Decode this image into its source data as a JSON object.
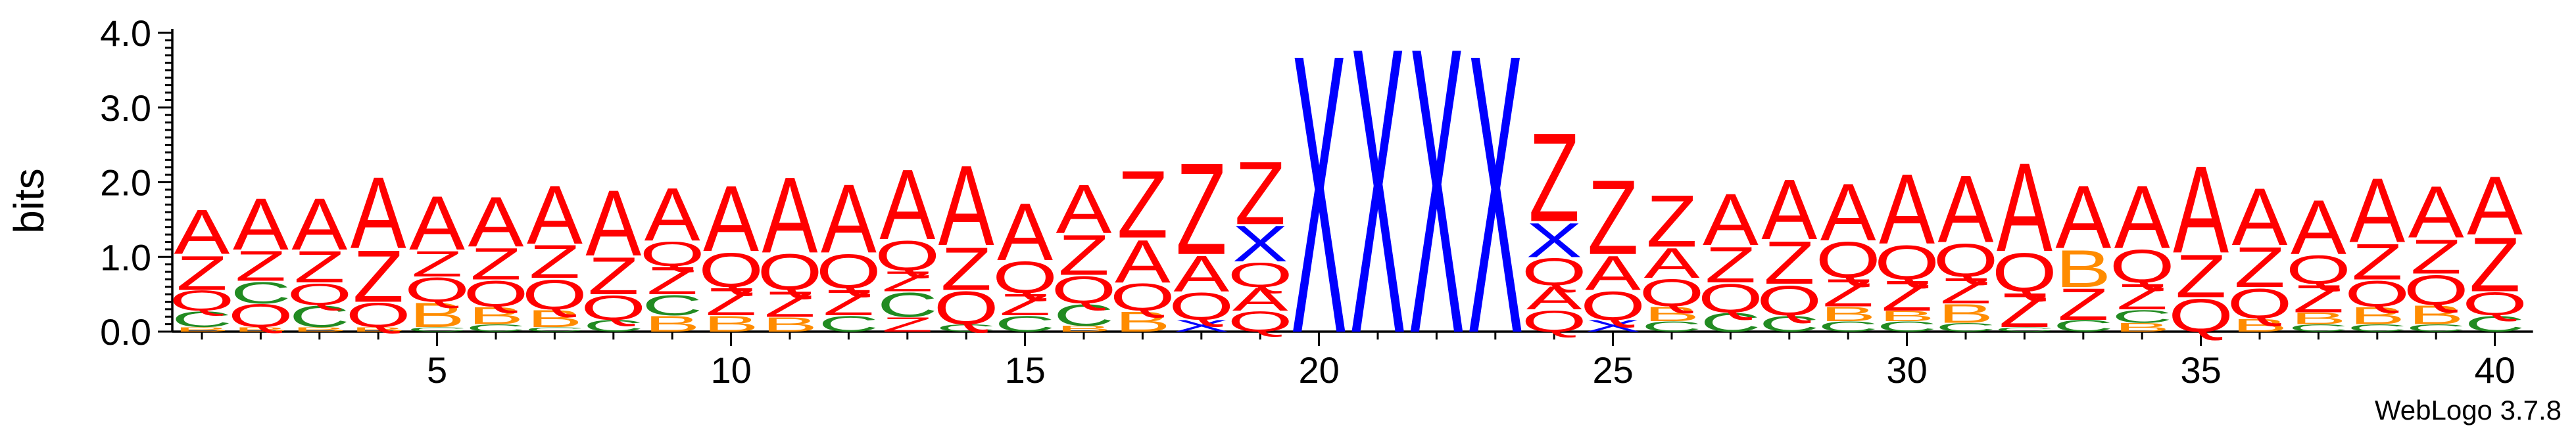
{
  "footer": {
    "credit": "WebLogo 3.7.8"
  },
  "colors": {
    "A": "#ff0000",
    "Z": "#ff0000",
    "Q": "#ff0000",
    "C": "#228b22",
    "B": "#ff8c00",
    "X": "#0000ff"
  },
  "chart_data": {
    "type": "sequence-logo",
    "ylabel": "bits",
    "ylim": [
      0,
      4.0
    ],
    "y_ticks": [
      "0.0",
      "1.0",
      "2.0",
      "3.0",
      "4.0"
    ],
    "x_ticks": [
      "5",
      "10",
      "15",
      "20",
      "25",
      "30",
      "35",
      "40"
    ],
    "positions": [
      {
        "pos": 1,
        "stack": [
          {
            "l": "B",
            "h": 0.06
          },
          {
            "l": "C",
            "h": 0.22
          },
          {
            "l": "Q",
            "h": 0.28
          },
          {
            "l": "Z",
            "h": 0.48
          },
          {
            "l": "A",
            "h": 0.62
          }
        ]
      },
      {
        "pos": 2,
        "stack": [
          {
            "l": "B",
            "h": 0.06
          },
          {
            "l": "Q",
            "h": 0.32
          },
          {
            "l": "C",
            "h": 0.3
          },
          {
            "l": "Z",
            "h": 0.42
          },
          {
            "l": "A",
            "h": 0.72
          }
        ]
      },
      {
        "pos": 3,
        "stack": [
          {
            "l": "B",
            "h": 0.06
          },
          {
            "l": "C",
            "h": 0.3
          },
          {
            "l": "Q",
            "h": 0.3
          },
          {
            "l": "Z",
            "h": 0.44
          },
          {
            "l": "A",
            "h": 0.72
          }
        ]
      },
      {
        "pos": 4,
        "stack": [
          {
            "l": "B",
            "h": 0.06
          },
          {
            "l": "Q",
            "h": 0.34
          },
          {
            "l": "Z",
            "h": 0.72
          },
          {
            "l": "A",
            "h": 1.0
          }
        ]
      },
      {
        "pos": 5,
        "stack": [
          {
            "l": "C",
            "h": 0.06
          },
          {
            "l": "B",
            "h": 0.34
          },
          {
            "l": "Q",
            "h": 0.34
          },
          {
            "l": "Z",
            "h": 0.36
          },
          {
            "l": "A",
            "h": 0.75
          }
        ]
      },
      {
        "pos": 6,
        "stack": [
          {
            "l": "C",
            "h": 0.1
          },
          {
            "l": "B",
            "h": 0.24
          },
          {
            "l": "Q",
            "h": 0.36
          },
          {
            "l": "Z",
            "h": 0.44
          },
          {
            "l": "A",
            "h": 0.7
          }
        ]
      },
      {
        "pos": 7,
        "stack": [
          {
            "l": "C",
            "h": 0.06
          },
          {
            "l": "B",
            "h": 0.24
          },
          {
            "l": "Q",
            "h": 0.42
          },
          {
            "l": "Z",
            "h": 0.46
          },
          {
            "l": "A",
            "h": 0.82
          }
        ]
      },
      {
        "pos": 8,
        "stack": [
          {
            "l": "C",
            "h": 0.16
          },
          {
            "l": "Q",
            "h": 0.34
          },
          {
            "l": "Z",
            "h": 0.52
          },
          {
            "l": "A",
            "h": 0.92
          }
        ]
      },
      {
        "pos": 9,
        "stack": [
          {
            "l": "B",
            "h": 0.22
          },
          {
            "l": "C",
            "h": 0.28
          },
          {
            "l": "Z",
            "h": 0.38
          },
          {
            "l": "Q",
            "h": 0.34
          },
          {
            "l": "A",
            "h": 0.74
          }
        ]
      },
      {
        "pos": 10,
        "stack": [
          {
            "l": "B",
            "h": 0.22
          },
          {
            "l": "Z",
            "h": 0.38
          },
          {
            "l": "Q",
            "h": 0.48
          },
          {
            "l": "A",
            "h": 0.92
          }
        ]
      },
      {
        "pos": 11,
        "stack": [
          {
            "l": "B",
            "h": 0.2
          },
          {
            "l": "Z",
            "h": 0.36
          },
          {
            "l": "Q",
            "h": 0.5
          },
          {
            "l": "A",
            "h": 1.06
          }
        ]
      },
      {
        "pos": 12,
        "stack": [
          {
            "l": "C",
            "h": 0.22
          },
          {
            "l": "Z",
            "h": 0.36
          },
          {
            "l": "Q",
            "h": 0.48
          },
          {
            "l": "A",
            "h": 0.96
          }
        ]
      },
      {
        "pos": 13,
        "stack": [
          {
            "l": "Z",
            "h": 0.2
          },
          {
            "l": "C",
            "h": 0.34
          },
          {
            "l": "Z",
            "h": 0.28
          },
          {
            "l": "Q",
            "h": 0.42
          },
          {
            "l": "A",
            "h": 0.98
          }
        ]
      },
      {
        "pos": 14,
        "stack": [
          {
            "l": "C",
            "h": 0.1
          },
          {
            "l": "Q",
            "h": 0.46
          },
          {
            "l": "Z",
            "h": 0.6
          },
          {
            "l": "A",
            "h": 1.12
          }
        ]
      },
      {
        "pos": 15,
        "stack": [
          {
            "l": "C",
            "h": 0.22
          },
          {
            "l": "Z",
            "h": 0.3
          },
          {
            "l": "Q",
            "h": 0.44
          },
          {
            "l": "A",
            "h": 0.8
          }
        ]
      },
      {
        "pos": 16,
        "stack": [
          {
            "l": "B",
            "h": 0.08
          },
          {
            "l": "C",
            "h": 0.3
          },
          {
            "l": "Q",
            "h": 0.38
          },
          {
            "l": "Z",
            "h": 0.56
          },
          {
            "l": "A",
            "h": 0.68
          }
        ]
      },
      {
        "pos": 17,
        "stack": [
          {
            "l": "B",
            "h": 0.28
          },
          {
            "l": "Q",
            "h": 0.38
          },
          {
            "l": "A",
            "h": 0.6
          },
          {
            "l": "Z",
            "h": 0.94
          }
        ]
      },
      {
        "pos": 18,
        "stack": [
          {
            "l": "X",
            "h": 0.16
          },
          {
            "l": "Q",
            "h": 0.38
          },
          {
            "l": "A",
            "h": 0.5
          },
          {
            "l": "Z",
            "h": 1.28
          }
        ]
      },
      {
        "pos": 19,
        "stack": [
          {
            "l": "Q",
            "h": 0.28
          },
          {
            "l": "A",
            "h": 0.32
          },
          {
            "l": "Q",
            "h": 0.34
          },
          {
            "l": "X",
            "h": 0.5
          },
          {
            "l": "Z",
            "h": 0.88
          }
        ]
      },
      {
        "pos": 20,
        "stack": [
          {
            "l": "X",
            "h": 3.9
          }
        ]
      },
      {
        "pos": 21,
        "stack": [
          {
            "l": "X",
            "h": 4.0
          }
        ]
      },
      {
        "pos": 22,
        "stack": [
          {
            "l": "X",
            "h": 4.0
          }
        ]
      },
      {
        "pos": 23,
        "stack": [
          {
            "l": "X",
            "h": 3.9
          }
        ]
      },
      {
        "pos": 24,
        "stack": [
          {
            "l": "Q",
            "h": 0.3
          },
          {
            "l": "A",
            "h": 0.32
          },
          {
            "l": "Q",
            "h": 0.38
          },
          {
            "l": "X",
            "h": 0.48
          },
          {
            "l": "Z",
            "h": 1.24
          }
        ]
      },
      {
        "pos": 25,
        "stack": [
          {
            "l": "X",
            "h": 0.16
          },
          {
            "l": "Q",
            "h": 0.4
          },
          {
            "l": "A",
            "h": 0.48
          },
          {
            "l": "Z",
            "h": 1.04
          }
        ]
      },
      {
        "pos": 26,
        "stack": [
          {
            "l": "C",
            "h": 0.14
          },
          {
            "l": "B",
            "h": 0.2
          },
          {
            "l": "Q",
            "h": 0.38
          },
          {
            "l": "A",
            "h": 0.42
          },
          {
            "l": "Z",
            "h": 0.72
          }
        ]
      },
      {
        "pos": 27,
        "stack": [
          {
            "l": "C",
            "h": 0.26
          },
          {
            "l": "Q",
            "h": 0.4
          },
          {
            "l": "Z",
            "h": 0.5
          },
          {
            "l": "A",
            "h": 0.72
          }
        ]
      },
      {
        "pos": 28,
        "stack": [
          {
            "l": "C",
            "h": 0.22
          },
          {
            "l": "Q",
            "h": 0.42
          },
          {
            "l": "Z",
            "h": 0.6
          },
          {
            "l": "A",
            "h": 0.84
          }
        ]
      },
      {
        "pos": 29,
        "stack": [
          {
            "l": "C",
            "h": 0.14
          },
          {
            "l": "B",
            "h": 0.2
          },
          {
            "l": "Z",
            "h": 0.38
          },
          {
            "l": "Q",
            "h": 0.5
          },
          {
            "l": "A",
            "h": 0.8
          }
        ]
      },
      {
        "pos": 30,
        "stack": [
          {
            "l": "C",
            "h": 0.14
          },
          {
            "l": "B",
            "h": 0.14
          },
          {
            "l": "Z",
            "h": 0.42
          },
          {
            "l": "Q",
            "h": 0.48
          },
          {
            "l": "A",
            "h": 0.98
          }
        ]
      },
      {
        "pos": 31,
        "stack": [
          {
            "l": "C",
            "h": 0.12
          },
          {
            "l": "B",
            "h": 0.26
          },
          {
            "l": "Z",
            "h": 0.36
          },
          {
            "l": "Q",
            "h": 0.46
          },
          {
            "l": "A",
            "h": 0.94
          }
        ]
      },
      {
        "pos": 32,
        "stack": [
          {
            "l": "C",
            "h": 0.06
          },
          {
            "l": "Z",
            "h": 0.48
          },
          {
            "l": "Q",
            "h": 0.54
          },
          {
            "l": "A",
            "h": 1.24
          }
        ]
      },
      {
        "pos": 33,
        "stack": [
          {
            "l": "C",
            "h": 0.16
          },
          {
            "l": "Z",
            "h": 0.44
          },
          {
            "l": "B",
            "h": 0.52
          },
          {
            "l": "A",
            "h": 0.88
          }
        ]
      },
      {
        "pos": 34,
        "stack": [
          {
            "l": "B",
            "h": 0.12
          },
          {
            "l": "C",
            "h": 0.18
          },
          {
            "l": "Z",
            "h": 0.36
          },
          {
            "l": "Q",
            "h": 0.46
          },
          {
            "l": "A",
            "h": 0.88
          }
        ]
      },
      {
        "pos": 35,
        "stack": [
          {
            "l": "Q",
            "h": 0.46
          },
          {
            "l": "Z",
            "h": 0.6
          },
          {
            "l": "A",
            "h": 1.22
          }
        ]
      },
      {
        "pos": 36,
        "stack": [
          {
            "l": "B",
            "h": 0.18
          },
          {
            "l": "Q",
            "h": 0.42
          },
          {
            "l": "Z",
            "h": 0.56
          },
          {
            "l": "A",
            "h": 0.8
          }
        ]
      },
      {
        "pos": 37,
        "stack": [
          {
            "l": "C",
            "h": 0.1
          },
          {
            "l": "B",
            "h": 0.16
          },
          {
            "l": "Z",
            "h": 0.38
          },
          {
            "l": "Q",
            "h": 0.4
          },
          {
            "l": "A",
            "h": 0.76
          }
        ]
      },
      {
        "pos": 38,
        "stack": [
          {
            "l": "C",
            "h": 0.1
          },
          {
            "l": "B",
            "h": 0.24
          },
          {
            "l": "Q",
            "h": 0.36
          },
          {
            "l": "Z",
            "h": 0.5
          },
          {
            "l": "A",
            "h": 0.9
          }
        ]
      },
      {
        "pos": 39,
        "stack": [
          {
            "l": "C",
            "h": 0.1
          },
          {
            "l": "B",
            "h": 0.26
          },
          {
            "l": "Q",
            "h": 0.42
          },
          {
            "l": "Z",
            "h": 0.48
          },
          {
            "l": "A",
            "h": 0.72
          }
        ]
      },
      {
        "pos": 40,
        "stack": [
          {
            "l": "C",
            "h": 0.22
          },
          {
            "l": "Q",
            "h": 0.32
          },
          {
            "l": "Z",
            "h": 0.76
          },
          {
            "l": "A",
            "h": 0.82
          }
        ]
      }
    ]
  }
}
